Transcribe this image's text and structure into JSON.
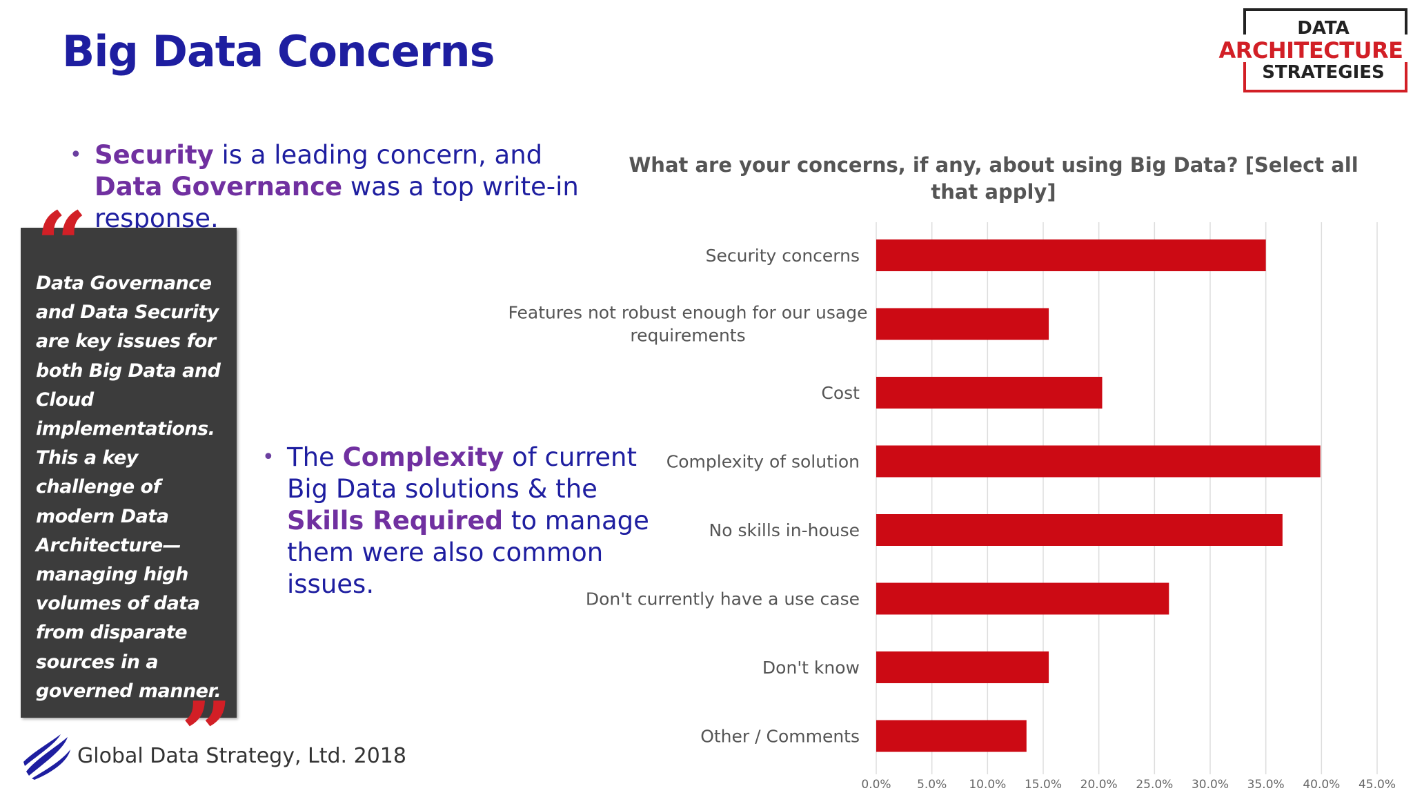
{
  "slide": {
    "title": "Big Data Concerns",
    "footer": "Global Data Strategy, Ltd. 2018"
  },
  "logo": {
    "line1": "DATA",
    "line2": "ARCHITECTURE",
    "line3": "STRATEGIES"
  },
  "bullets": {
    "b1": {
      "hl1": "Security",
      "t1": " is a leading concern, and ",
      "hl2": "Data Governance",
      "t2": " was a top write-in response."
    },
    "b2": {
      "t0": "The ",
      "hl1": "Complexity",
      "t1": " of current Big Data solutions & the ",
      "hl2": "Skills Required",
      "t2": " to manage them were also common issues."
    }
  },
  "quote": {
    "text": "Data Governance and Data Security are key issues for both Big Data and Cloud implementations. This a key challenge of modern Data Architecture—managing high volumes of data from disparate sources in a governed manner."
  },
  "colors": {
    "title": "#1e1ea0",
    "highlight": "#7030a0",
    "bar": "#cc0a14",
    "quote_bg": "#3c3c3c",
    "accent": "#d21f26"
  },
  "chart_data": {
    "type": "bar",
    "orientation": "horizontal",
    "title": "What are your concerns, if any, about using Big Data? [Select all that apply]",
    "categories": [
      "Security concerns",
      "Features not robust enough for our usage requirements",
      "Cost",
      "Complexity of solution",
      "No skills in-house",
      "Don't currently have a use case",
      "Don't know",
      "Other / Comments"
    ],
    "values": [
      35.0,
      15.5,
      20.3,
      39.9,
      36.5,
      26.3,
      15.5,
      13.5
    ],
    "xlim": [
      0,
      45
    ],
    "xticks": [
      "0.0%",
      "5.0%",
      "10.0%",
      "15.0%",
      "20.0%",
      "25.0%",
      "30.0%",
      "35.0%",
      "40.0%",
      "45.0%"
    ],
    "grid": "vertical",
    "legend": "none"
  }
}
